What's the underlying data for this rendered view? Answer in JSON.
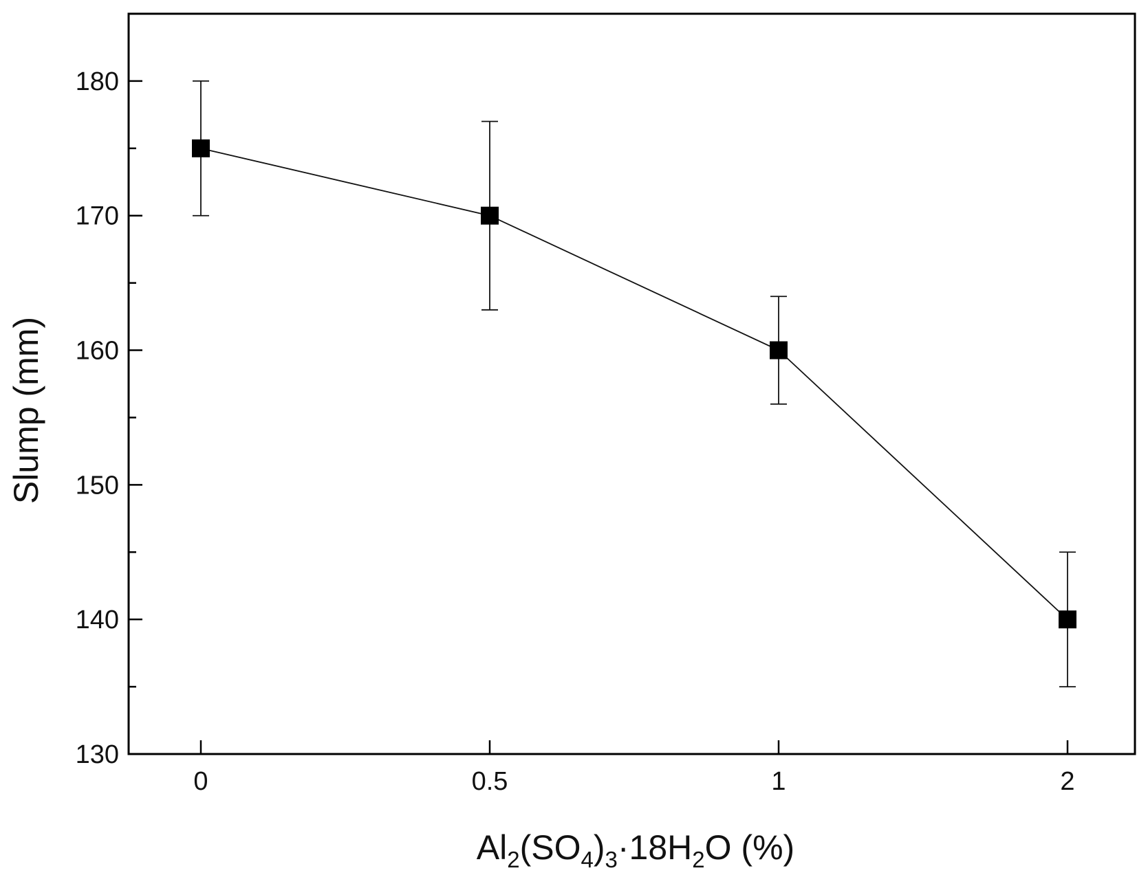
{
  "chart_data": {
    "type": "line",
    "categories": [
      "0",
      "0.5",
      "1",
      "2"
    ],
    "values": [
      175,
      170,
      160,
      140
    ],
    "error_bars": [
      {
        "low": 170,
        "high": 180
      },
      {
        "low": 163,
        "high": 177
      },
      {
        "low": 156,
        "high": 164
      },
      {
        "low": 135,
        "high": 145
      }
    ],
    "xlabel": {
      "parts": [
        {
          "text": "Al",
          "sub": false
        },
        {
          "text": "2",
          "sub": true
        },
        {
          "text": "(SO",
          "sub": false
        },
        {
          "text": "4",
          "sub": true
        },
        {
          "text": ")",
          "sub": false
        },
        {
          "text": "3",
          "sub": true
        },
        {
          "text": "·18H",
          "sub": false
        },
        {
          "text": "2",
          "sub": true
        },
        {
          "text": "O (%)",
          "sub": false
        }
      ]
    },
    "ylabel": "Slump (mm)",
    "ylim": [
      130,
      185
    ],
    "yticks_major": [
      130,
      140,
      150,
      160,
      170,
      180
    ],
    "yticks_minor": [
      135,
      145,
      155,
      165,
      175
    ],
    "grid": false,
    "marker": "square",
    "colors": {
      "line": "#111111",
      "marker": "#000000",
      "axis": "#000000",
      "background": "#ffffff"
    }
  }
}
